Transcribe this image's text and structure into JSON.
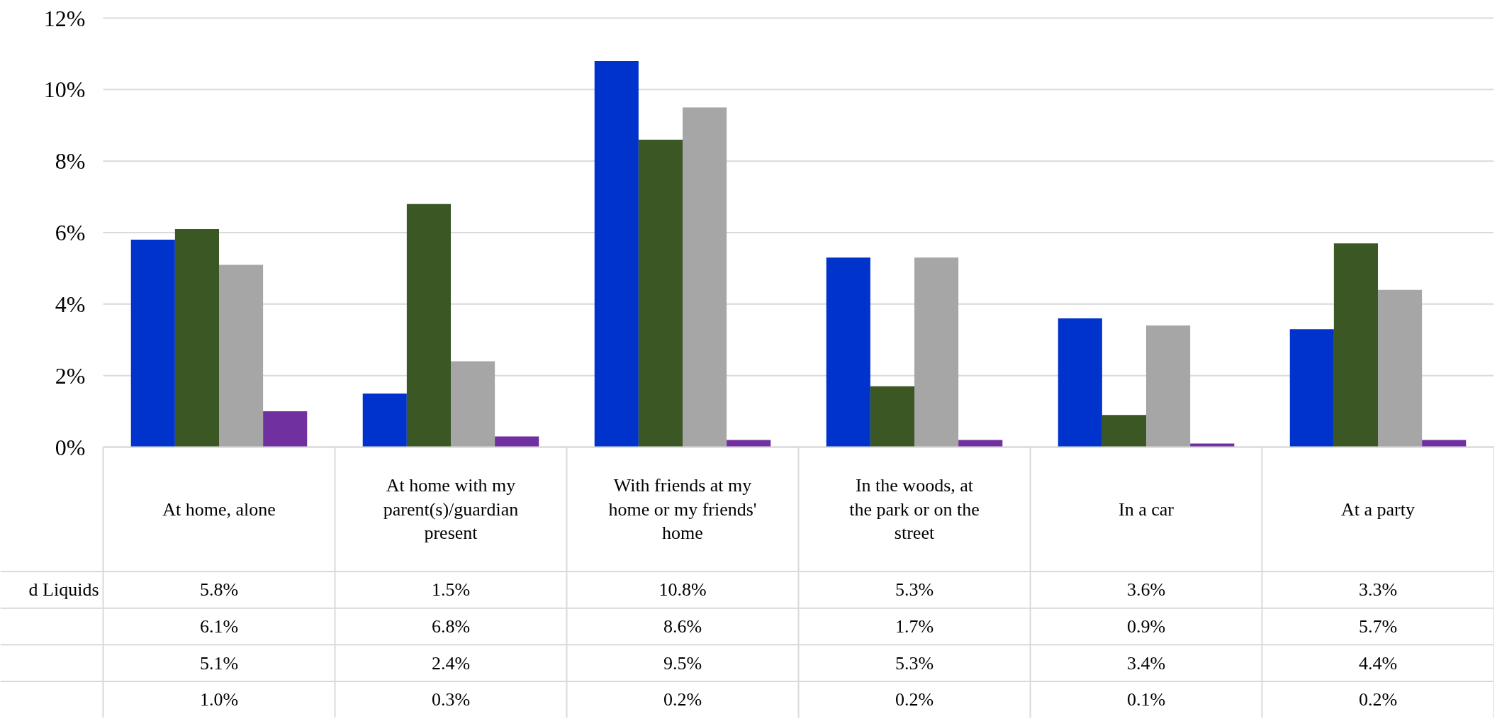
{
  "chart_data": {
    "type": "bar",
    "categories": [
      "At home, alone",
      "At home with my parent(s)/guardian present",
      "With friends at my home or my friends' home",
      "In the woods, at the park or on the street",
      "In a car",
      "At a party"
    ],
    "series": [
      {
        "name": "d Liquids",
        "color": "#0033cc",
        "values": [
          5.8,
          1.5,
          10.8,
          5.3,
          3.6,
          3.3
        ],
        "value_labels": [
          "5.8%",
          "1.5%",
          "10.8%",
          "5.3%",
          "3.6%",
          "3.3%"
        ]
      },
      {
        "color": "#3a5724",
        "values": [
          6.1,
          6.8,
          8.6,
          1.7,
          0.9,
          5.7
        ],
        "value_labels": [
          "6.1%",
          "6.8%",
          "8.6%",
          "1.7%",
          "0.9%",
          "5.7%"
        ]
      },
      {
        "color": "#a6a6a6",
        "values": [
          5.1,
          2.4,
          9.5,
          5.3,
          3.4,
          4.4
        ],
        "value_labels": [
          "5.1%",
          "2.4%",
          "9.5%",
          "5.3%",
          "3.4%",
          "4.4%"
        ]
      },
      {
        "color": "#7030a0",
        "values": [
          1.0,
          0.3,
          0.2,
          0.2,
          0.1,
          0.2
        ],
        "value_labels": [
          "1.0%",
          "0.3%",
          "0.2%",
          "0.2%",
          "0.1%",
          "0.2%"
        ]
      }
    ],
    "ylim": [
      0,
      12
    ],
    "yticks": [
      {
        "value": 0,
        "label": "0%"
      },
      {
        "value": 2,
        "label": "2%"
      },
      {
        "value": 4,
        "label": "4%"
      },
      {
        "value": 6,
        "label": "6%"
      },
      {
        "value": 8,
        "label": "8%"
      },
      {
        "value": 10,
        "label": "10%"
      },
      {
        "value": 12,
        "label": "12%"
      }
    ],
    "grid": "y"
  }
}
